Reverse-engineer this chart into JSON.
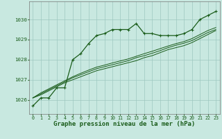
{
  "background_color": "#c8e8e0",
  "plot_bg_color": "#c8e8e0",
  "grid_color": "#9dc8c0",
  "line_color": "#1a5c1a",
  "xlabel": "Graphe pression niveau de la mer (hPa)",
  "xlabel_fontsize": 6.5,
  "xlabel_color": "#1a5c1a",
  "ylabel_ticks": [
    1026,
    1027,
    1028,
    1029,
    1030
  ],
  "xlim": [
    -0.5,
    23.5
  ],
  "ylim": [
    1025.3,
    1030.9
  ],
  "series": {
    "main": [
      1025.7,
      1026.1,
      1026.1,
      1026.6,
      1026.6,
      1028.0,
      1028.3,
      1028.8,
      1029.2,
      1029.3,
      1029.5,
      1029.5,
      1029.5,
      1029.8,
      1029.3,
      1029.3,
      1029.2,
      1029.2,
      1029.2,
      1029.3,
      1029.5,
      1030.0,
      1030.2,
      1030.4
    ],
    "line2": [
      1026.1,
      1026.25,
      1026.45,
      1026.65,
      1026.85,
      1027.0,
      1027.15,
      1027.3,
      1027.45,
      1027.55,
      1027.65,
      1027.75,
      1027.85,
      1027.95,
      1028.1,
      1028.2,
      1028.35,
      1028.5,
      1028.6,
      1028.7,
      1028.85,
      1029.05,
      1029.25,
      1029.45
    ],
    "line3": [
      1026.1,
      1026.3,
      1026.5,
      1026.7,
      1026.9,
      1027.1,
      1027.25,
      1027.4,
      1027.55,
      1027.65,
      1027.75,
      1027.85,
      1027.95,
      1028.1,
      1028.2,
      1028.32,
      1028.45,
      1028.6,
      1028.72,
      1028.82,
      1028.95,
      1029.15,
      1029.35,
      1029.5
    ],
    "line4": [
      1026.1,
      1026.35,
      1026.55,
      1026.75,
      1026.95,
      1027.15,
      1027.32,
      1027.48,
      1027.63,
      1027.73,
      1027.84,
      1027.94,
      1028.04,
      1028.17,
      1028.3,
      1028.42,
      1028.55,
      1028.68,
      1028.8,
      1028.9,
      1029.05,
      1029.25,
      1029.45,
      1029.6
    ]
  },
  "x_ticks": [
    0,
    1,
    2,
    3,
    4,
    5,
    6,
    7,
    8,
    9,
    10,
    11,
    12,
    13,
    14,
    15,
    16,
    17,
    18,
    19,
    20,
    21,
    22,
    23
  ],
  "tick_fontsize": 4.8,
  "tick_color": "#1a5c1a"
}
